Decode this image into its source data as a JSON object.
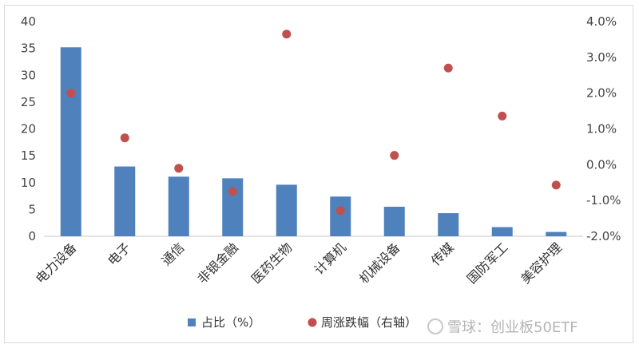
{
  "chart_data": {
    "type": "bar",
    "categories": [
      "电力设备",
      "电子",
      "通信",
      "非银金融",
      "医药生物",
      "计算机",
      "机械设备",
      "传媒",
      "国防军工",
      "美容护理"
    ],
    "series": [
      {
        "name": "占比（%）",
        "type": "bar",
        "axis": "left",
        "color": "#4f81bd",
        "values": [
          35.2,
          13.0,
          11.1,
          10.8,
          9.6,
          7.4,
          5.5,
          4.3,
          1.7,
          0.8
        ]
      },
      {
        "name": "周涨跌幅（右轴）",
        "type": "scatter",
        "axis": "right",
        "color": "#c0504d",
        "values": [
          0.02,
          0.0075,
          -0.001,
          -0.0075,
          0.0365,
          -0.0128,
          0.0026,
          0.027,
          0.0136,
          -0.0057
        ]
      }
    ],
    "y_left": {
      "ylim": [
        0,
        40
      ],
      "ticks": [
        "0",
        "5",
        "10",
        "15",
        "20",
        "25",
        "30",
        "35",
        "40"
      ]
    },
    "y_right": {
      "ylim": [
        -0.02,
        0.04
      ],
      "ticks": [
        "-2.0%",
        "-1.0%",
        "0.0%",
        "1.0%",
        "2.0%",
        "3.0%",
        "4.0%"
      ]
    },
    "grid": false,
    "legend_position": "bottom"
  },
  "legend": {
    "bar_label": "占比（%）",
    "dot_label": "周涨跌幅（右轴）"
  },
  "watermark": "雪球：创业板50ETF"
}
